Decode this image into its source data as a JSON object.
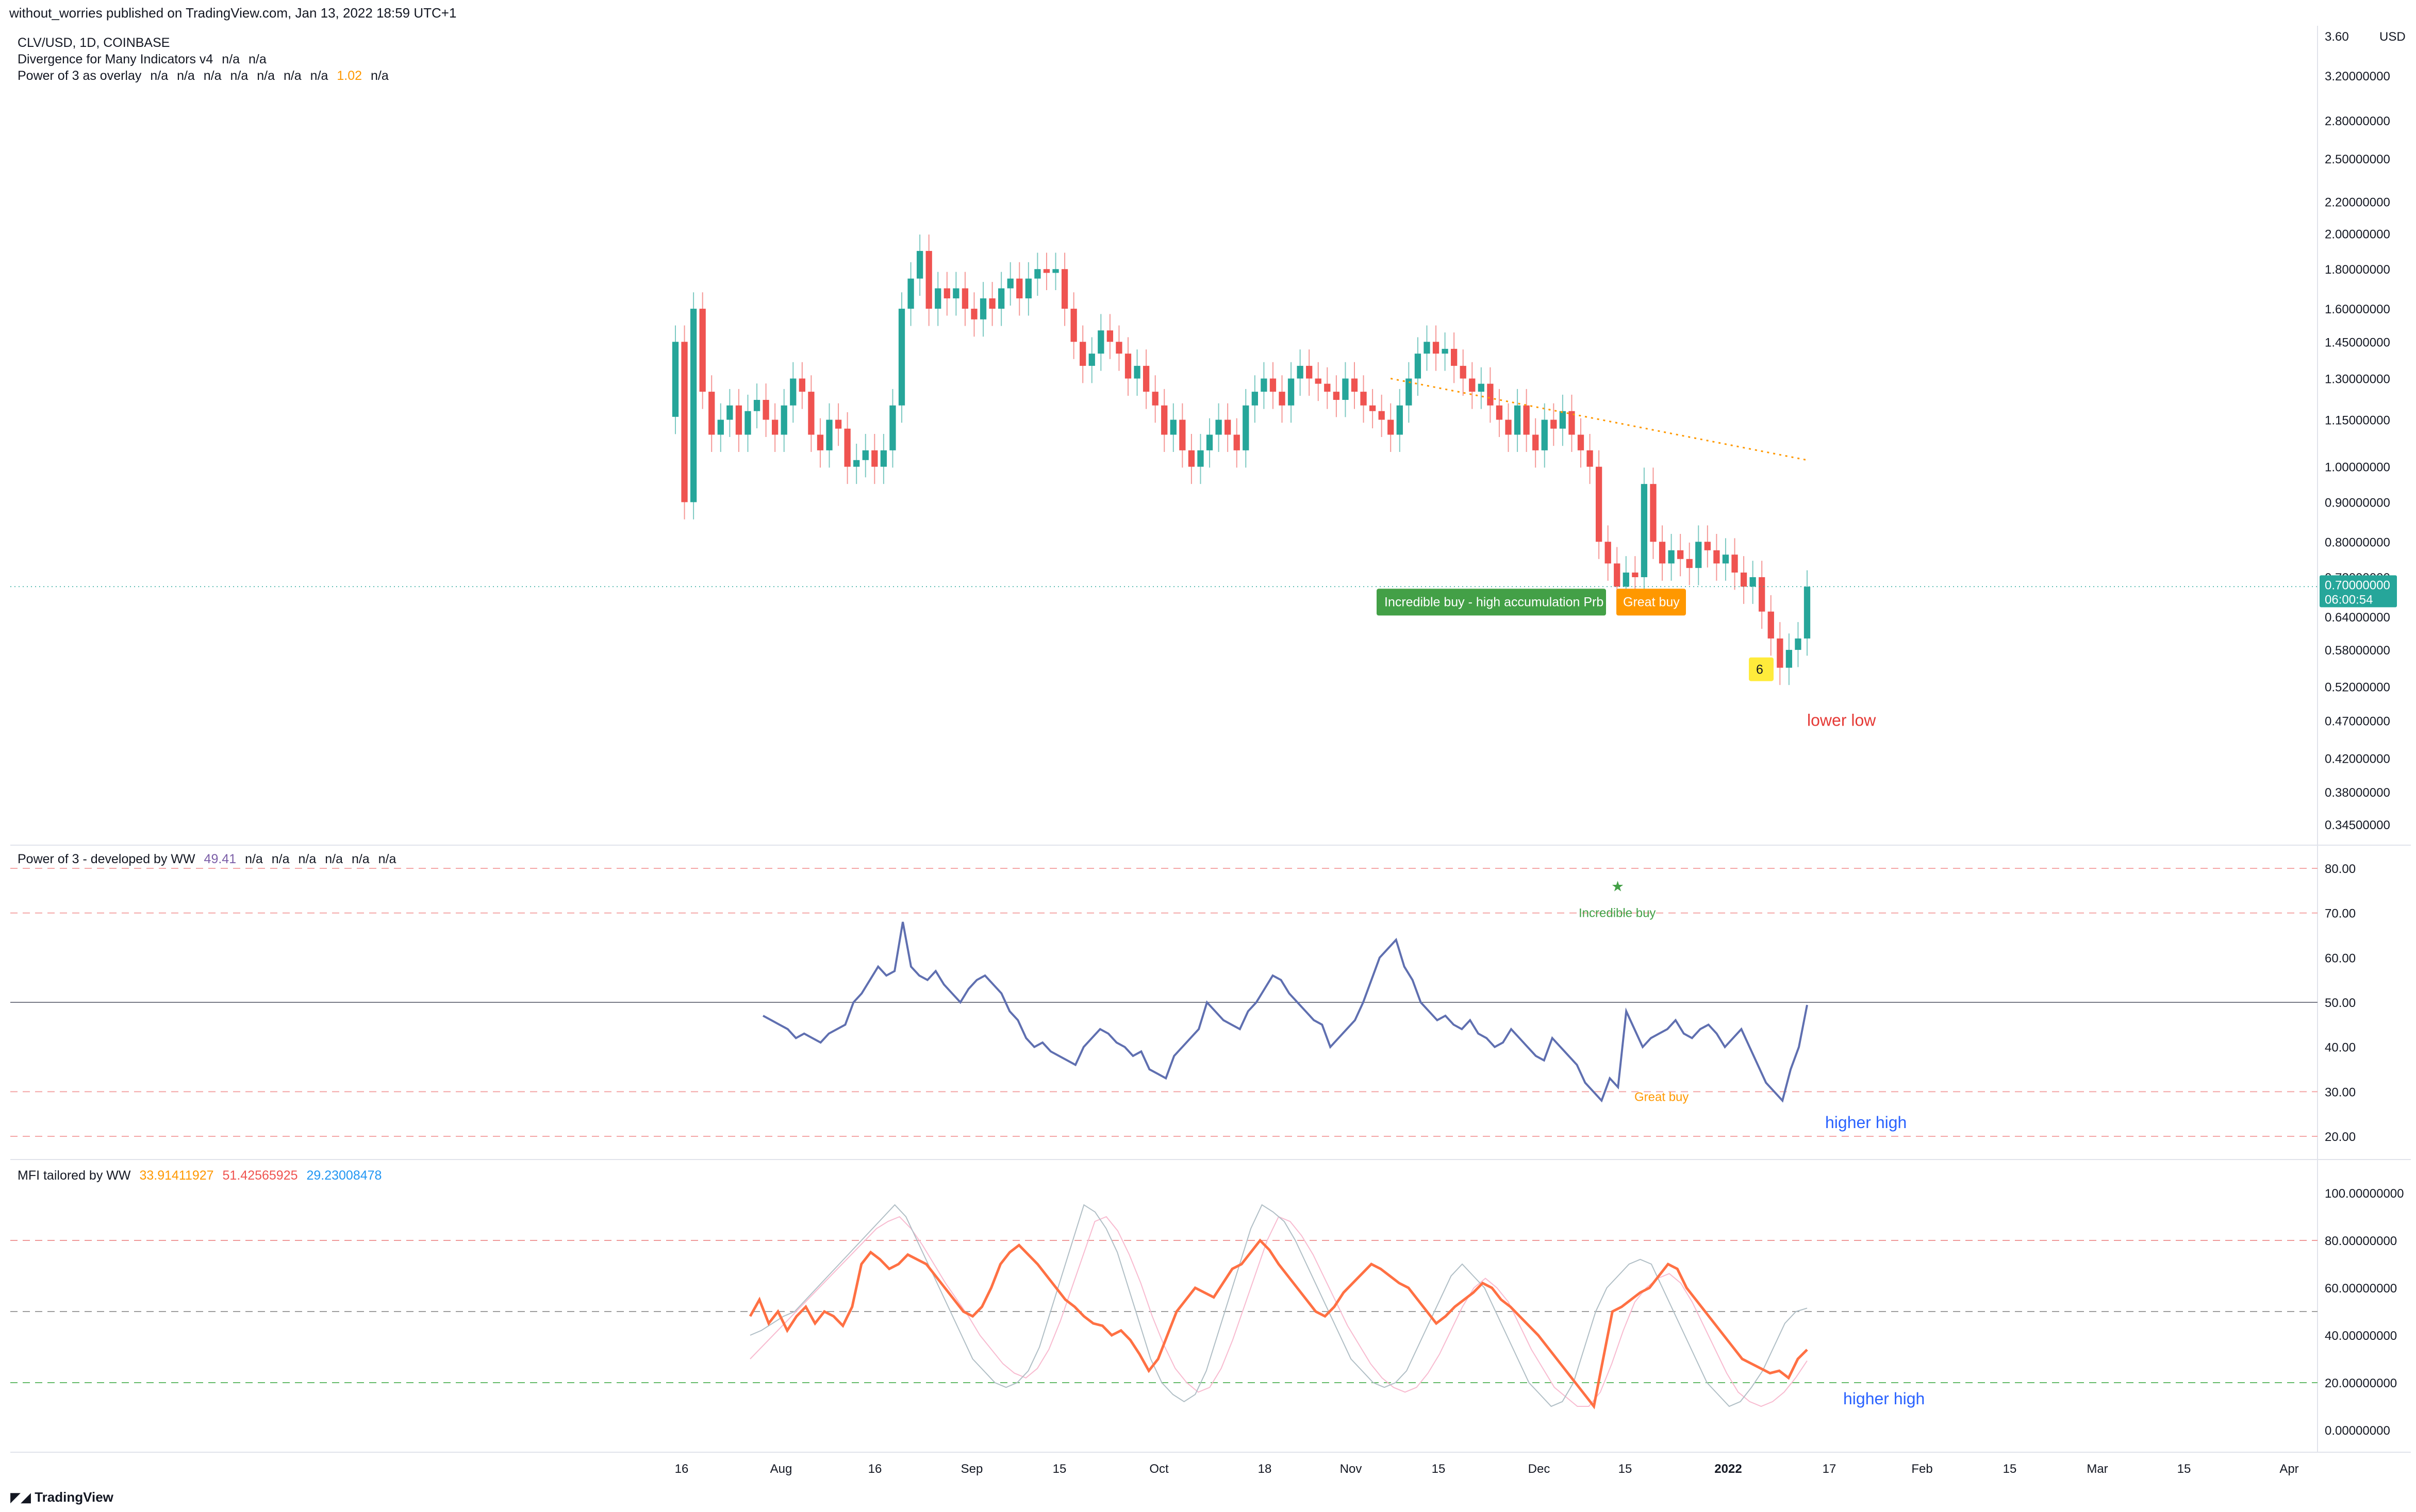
{
  "header": {
    "published": "without_worries published on TradingView.com, Jan 13, 2022 18:59 UTC+1"
  },
  "legend": {
    "symbol": "CLV/USD, 1D, COINBASE",
    "divergence": "Divergence for Many Indicators v4",
    "divergence_values": [
      "n/a",
      "n/a"
    ],
    "overlay": "Power of 3 as overlay",
    "overlay_values": [
      "n/a",
      "n/a",
      "n/a",
      "n/a",
      "n/a",
      "n/a",
      "n/a",
      "1.02",
      "n/a"
    ]
  },
  "price_pane": {
    "ticks": [
      "3.60",
      "3.20000000",
      "2.80000000",
      "2.50000000",
      "2.20000000",
      "2.00000000",
      "1.80000000",
      "1.60000000",
      "1.45000000",
      "1.30000000",
      "1.15000000",
      "1.00000000",
      "0.90000000",
      "0.80000000",
      "0.72000000",
      "0.64000000",
      "0.58000000",
      "0.52000000",
      "0.47000000",
      "0.42000000",
      "0.38000000",
      "0.34500000"
    ],
    "currency": "USD",
    "last_price": "0.70000000",
    "countdown": "06:00:54",
    "labels": {
      "incredible": "Incredible buy - high accumulation Prb",
      "great": "Great buy",
      "count": "6",
      "lower_low": "lower low"
    }
  },
  "pane2": {
    "title": "Power of 3 - developed by WW",
    "value": "49.41",
    "extra": [
      "n/a",
      "n/a",
      "n/a",
      "n/a",
      "n/a",
      "n/a"
    ],
    "ticks": [
      "80.00",
      "70.00",
      "60.00",
      "50.00",
      "40.00",
      "30.00",
      "20.00"
    ],
    "labels": {
      "incredible": "Incredible buy",
      "great": "Great buy",
      "star": "★",
      "higher_high": "higher high"
    }
  },
  "pane3": {
    "title": "MFI tailored by WW",
    "values": [
      "33.91411927",
      "51.42565925",
      "29.23008478"
    ],
    "ticks": [
      "100.00000000",
      "80.00000000",
      "60.00000000",
      "40.00000000",
      "20.00000000",
      "0.00000000"
    ],
    "labels": {
      "higher_high": "higher high"
    }
  },
  "time_axis": [
    "16",
    "Aug",
    "16",
    "Sep",
    "15",
    "Oct",
    "18",
    "Nov",
    "15",
    "Dec",
    "15",
    "2022",
    "17",
    "Feb",
    "15",
    "Mar",
    "15",
    "Apr"
  ],
  "branding": "TradingView",
  "colors": {
    "up": "#26a69a",
    "down": "#ef5350",
    "orange": "#ff9800",
    "green_label": "#43a047",
    "osc": "#5f6fb0",
    "mfi": "#ff9800",
    "blue_text": "#2962ff",
    "red_text": "#e53935"
  },
  "chart_data": [
    {
      "type": "candlestick",
      "title": "CLV/USD, 1D, COINBASE",
      "ylabel": "USD",
      "ylim": [
        0.345,
        3.6
      ],
      "log_scale": true,
      "x_start": "2021-07-16",
      "x_end": "2022-01-13",
      "grid": false,
      "close": [
        1.45,
        0.9,
        1.6,
        1.25,
        1.1,
        1.15,
        1.2,
        1.1,
        1.18,
        1.22,
        1.15,
        1.1,
        1.2,
        1.3,
        1.25,
        1.1,
        1.05,
        1.15,
        1.12,
        1.0,
        1.02,
        1.05,
        1.0,
        1.05,
        1.2,
        1.6,
        1.75,
        1.9,
        1.6,
        1.7,
        1.65,
        1.7,
        1.6,
        1.55,
        1.65,
        1.6,
        1.7,
        1.75,
        1.65,
        1.75,
        1.8,
        1.78,
        1.8,
        1.6,
        1.45,
        1.35,
        1.4,
        1.5,
        1.45,
        1.4,
        1.3,
        1.35,
        1.25,
        1.2,
        1.1,
        1.15,
        1.05,
        1.0,
        1.05,
        1.1,
        1.15,
        1.1,
        1.05,
        1.2,
        1.25,
        1.3,
        1.25,
        1.2,
        1.3,
        1.35,
        1.3,
        1.28,
        1.25,
        1.22,
        1.3,
        1.25,
        1.2,
        1.18,
        1.15,
        1.1,
        1.2,
        1.3,
        1.4,
        1.45,
        1.4,
        1.42,
        1.35,
        1.3,
        1.25,
        1.28,
        1.2,
        1.15,
        1.1,
        1.2,
        1.1,
        1.05,
        1.15,
        1.12,
        1.18,
        1.1,
        1.05,
        1.0,
        0.8,
        0.75,
        0.7,
        0.73,
        0.72,
        0.95,
        0.8,
        0.75,
        0.78,
        0.76,
        0.74,
        0.8,
        0.78,
        0.75,
        0.77,
        0.73,
        0.7,
        0.72,
        0.65,
        0.6,
        0.55,
        0.58,
        0.6,
        0.7
      ],
      "ma_dotted": {
        "start": "2021-11-06",
        "end": "2022-01-13",
        "from": 1.3,
        "to": 1.02
      },
      "annotations": [
        {
          "date": "2021-12-09",
          "text": "Incredible buy - high accumulation Prb"
        },
        {
          "date": "2021-12-12",
          "text": "Great buy"
        },
        {
          "date": "2022-01-03",
          "text": "6"
        },
        {
          "text": "lower low"
        }
      ]
    },
    {
      "type": "line",
      "title": "Power of 3 - developed by WW",
      "ylim": [
        20,
        80
      ],
      "hlines": [
        80,
        70,
        50,
        30,
        20
      ],
      "values": [
        47,
        46,
        45,
        44,
        42,
        43,
        42,
        41,
        43,
        44,
        45,
        50,
        52,
        55,
        58,
        56,
        57,
        68,
        58,
        56,
        55,
        57,
        54,
        52,
        50,
        53,
        55,
        56,
        54,
        52,
        48,
        46,
        42,
        40,
        41,
        39,
        38,
        37,
        36,
        40,
        42,
        44,
        43,
        41,
        40,
        38,
        39,
        35,
        34,
        33,
        38,
        40,
        42,
        44,
        50,
        48,
        46,
        45,
        44,
        48,
        50,
        53,
        56,
        55,
        52,
        50,
        48,
        46,
        45,
        40,
        42,
        44,
        46,
        50,
        55,
        60,
        62,
        64,
        58,
        55,
        50,
        48,
        46,
        47,
        45,
        44,
        46,
        43,
        42,
        40,
        41,
        44,
        42,
        40,
        38,
        37,
        42,
        40,
        38,
        36,
        32,
        30,
        28,
        33,
        31,
        48,
        44,
        40,
        42,
        43,
        44,
        46,
        43,
        42,
        44,
        45,
        43,
        40,
        42,
        44,
        40,
        36,
        32,
        30,
        28,
        35,
        40,
        49.41
      ]
    },
    {
      "type": "line",
      "title": "MFI tailored by WW",
      "ylim": [
        0,
        100
      ],
      "hlines": [
        80,
        50,
        20
      ],
      "series": [
        {
          "name": "MFI",
          "values": [
            48,
            55,
            45,
            50,
            42,
            48,
            52,
            45,
            50,
            48,
            44,
            52,
            70,
            75,
            72,
            68,
            70,
            74,
            72,
            70,
            65,
            60,
            55,
            50,
            48,
            52,
            60,
            70,
            75,
            78,
            74,
            70,
            65,
            60,
            55,
            52,
            48,
            45,
            44,
            40,
            42,
            38,
            32,
            25,
            30,
            40,
            50,
            55,
            60,
            58,
            56,
            62,
            68,
            70,
            75,
            80,
            76,
            70,
            65,
            60,
            55,
            50,
            48,
            52,
            58,
            62,
            66,
            70,
            68,
            65,
            62,
            60,
            55,
            50,
            45,
            48,
            52,
            55,
            58,
            62,
            60,
            55,
            52,
            48,
            44,
            40,
            35,
            30,
            25,
            20,
            15,
            10,
            30,
            50,
            52,
            55,
            58,
            60,
            65,
            70,
            68,
            60,
            55,
            50,
            45,
            40,
            35,
            30,
            28,
            26,
            24,
            25,
            22,
            30,
            33.91
          ]
        },
        {
          "name": "Signal",
          "values": [
            40,
            42,
            45,
            48,
            50,
            55,
            60,
            65,
            70,
            75,
            80,
            85,
            90,
            95,
            90,
            80,
            70,
            60,
            50,
            40,
            30,
            25,
            20,
            18,
            20,
            25,
            35,
            50,
            65,
            80,
            95,
            92,
            85,
            75,
            60,
            45,
            30,
            20,
            15,
            12,
            15,
            25,
            40,
            55,
            70,
            85,
            95,
            92,
            88,
            80,
            70,
            60,
            50,
            40,
            30,
            25,
            20,
            18,
            20,
            25,
            35,
            45,
            55,
            65,
            70,
            65,
            60,
            50,
            40,
            30,
            20,
            15,
            10,
            12,
            20,
            35,
            50,
            60,
            65,
            70,
            72,
            70,
            60,
            50,
            40,
            30,
            20,
            15,
            10,
            12,
            18,
            25,
            35,
            45,
            50,
            51.43
          ]
        },
        {
          "name": "Fast",
          "values": [
            30,
            35,
            40,
            45,
            50,
            55,
            60,
            65,
            70,
            75,
            80,
            85,
            88,
            90,
            85,
            78,
            70,
            62,
            55,
            48,
            40,
            34,
            28,
            24,
            22,
            26,
            34,
            46,
            60,
            74,
            88,
            90,
            84,
            74,
            62,
            48,
            36,
            26,
            20,
            16,
            18,
            26,
            38,
            52,
            66,
            80,
            90,
            88,
            82,
            74,
            64,
            54,
            44,
            36,
            28,
            22,
            18,
            16,
            18,
            24,
            32,
            42,
            52,
            60,
            64,
            60,
            54,
            44,
            34,
            26,
            18,
            14,
            10,
            10,
            16,
            28,
            42,
            54,
            60,
            64,
            66,
            62,
            54,
            44,
            34,
            24,
            16,
            12,
            10,
            12,
            16,
            22,
            29.23
          ]
        }
      ]
    }
  ]
}
